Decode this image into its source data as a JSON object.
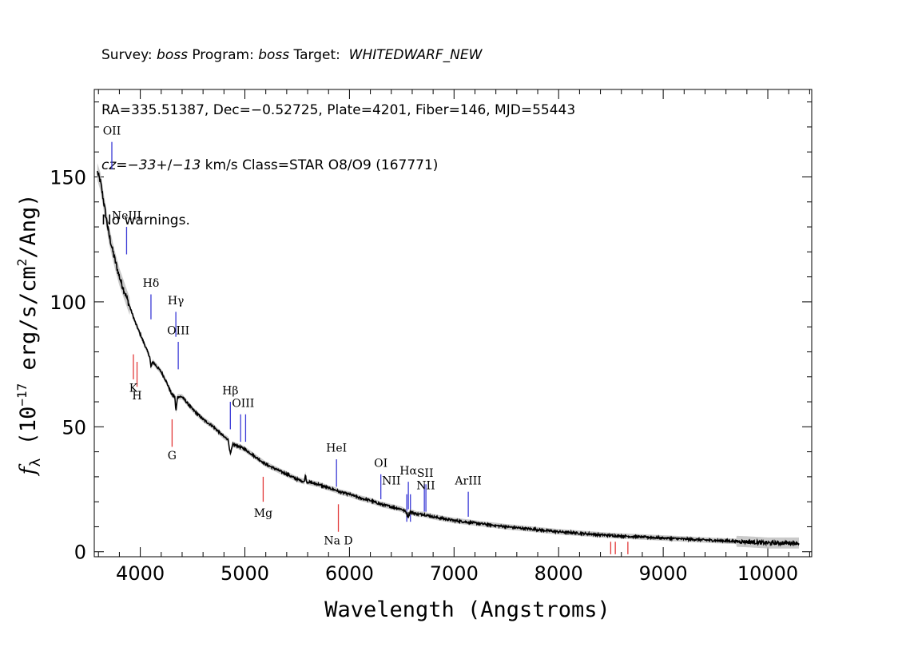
{
  "header": {
    "line1": {
      "survey_label": "Survey: ",
      "survey": "boss",
      "program_label": " Program: ",
      "program": "boss",
      "target_label": " Target:  ",
      "target": "WHITEDWARF_NEW"
    },
    "line2": "RA=335.51387, Dec=−0.52725, Plate=4201, Fiber=146, MJD=55443",
    "line3": {
      "cz_label": "cz=",
      "cz_value": "−33",
      "cz_sep": "+/−",
      "cz_err": "13",
      "cz_rest": " km/s Class=STAR O8/O9 (167771)"
    },
    "line4": "No warnings."
  },
  "chart_data": {
    "type": "line",
    "title": "",
    "xlabel": "Wavelength (Angstroms)",
    "ylabel": "f_λ (10^-17 erg/s/cm^2/Ang)",
    "ylabel_parts": {
      "f": "f",
      "lambda": "λ",
      "pre": " (10",
      "exp1": "−17",
      "mid": " erg/s/cm",
      "exp2": "2",
      "post": "/Ang)"
    },
    "xlim": [
      3560,
      10420
    ],
    "ylim": [
      -2,
      185
    ],
    "xticks": [
      4000,
      5000,
      6000,
      7000,
      8000,
      9000,
      10000
    ],
    "xtick_labels": [
      "4000",
      "5000",
      "6000",
      "7000",
      "8000",
      "9000",
      "10000"
    ],
    "yticks": [
      0,
      50,
      100,
      150
    ],
    "ytick_labels": [
      "0",
      "50",
      "100",
      "150"
    ],
    "grid": false,
    "colors": {
      "spectrum": "#000000",
      "error": "#bdbdbd",
      "emission": "#3a3ad6",
      "absorption": "#e23a3a"
    },
    "spectrum": {
      "x": [
        3590,
        3620,
        3650,
        3700,
        3750,
        3800,
        3850,
        3900,
        3950,
        4000,
        4050,
        4090,
        4102,
        4120,
        4200,
        4250,
        4300,
        4330,
        4341,
        4355,
        4400,
        4500,
        4600,
        4700,
        4800,
        4840,
        4861,
        4885,
        4950,
        5000,
        5100,
        5200,
        5300,
        5400,
        5500,
        5570,
        5578,
        5590,
        5700,
        5800,
        5880,
        5900,
        6000,
        6100,
        6200,
        6300,
        6400,
        6500,
        6540,
        6562,
        6580,
        6650,
        6700,
        6800,
        7000,
        7200,
        7500,
        8000,
        8500,
        9000,
        9500,
        9800,
        10000,
        10200,
        10300
      ],
      "y": [
        152,
        148,
        140,
        127,
        118,
        110,
        104,
        98,
        92,
        87,
        82,
        78,
        74,
        76,
        72,
        68,
        63,
        62,
        56,
        62,
        62,
        57,
        53,
        50,
        46,
        45,
        39,
        43,
        42,
        41,
        38,
        35,
        33,
        31,
        29,
        28,
        31,
        28,
        27,
        25.5,
        24.5,
        24,
        23,
        21.5,
        20.5,
        19,
        18,
        17,
        16,
        14,
        16,
        15,
        15,
        14,
        12.5,
        11.5,
        10,
        8,
        6.5,
        5.5,
        4.5,
        4,
        3.5,
        3.5,
        3.5
      ]
    },
    "emission_lines": [
      {
        "name": "OII",
        "wave": 3728,
        "y0": 153,
        "y1": 164
      },
      {
        "name": "NeIII",
        "wave": 3869,
        "y0": 119,
        "y1": 130
      },
      {
        "name": "Hδ",
        "wave": 4102,
        "y0": 93,
        "y1": 103
      },
      {
        "name": "Hγ",
        "wave": 4340,
        "y0": 86,
        "y1": 96
      },
      {
        "name": "OIII",
        "wave": 4363,
        "y0": 73,
        "y1": 84
      },
      {
        "name": "Hβ",
        "wave": 4861,
        "y0": 49,
        "y1": 60
      },
      {
        "name": "OIII",
        "wave": 4959,
        "y0": 44,
        "y1": 55
      },
      {
        "name": "OIII",
        "wave": 5007,
        "y0": 44,
        "y1": 55
      },
      {
        "name": "HeI",
        "wave": 5876,
        "y0": 26,
        "y1": 37
      },
      {
        "name": "OI",
        "wave": 6300,
        "y0": 21,
        "y1": 31
      },
      {
        "name": "NII",
        "wave": 6548,
        "y0": 12,
        "y1": 23
      },
      {
        "name": "Hα",
        "wave": 6563,
        "y0": 17,
        "y1": 28
      },
      {
        "name": "NII",
        "wave": 6583,
        "y0": 12,
        "y1": 23
      },
      {
        "name": "SII",
        "wave": 6716,
        "y0": 16,
        "y1": 27
      },
      {
        "name": "SII",
        "wave": 6731,
        "y0": 16,
        "y1": 27
      },
      {
        "name": "ArIII",
        "wave": 7136,
        "y0": 14,
        "y1": 24
      }
    ],
    "absorption_lines": [
      {
        "name": "K",
        "wave": 3934,
        "y0": 69,
        "y1": 79
      },
      {
        "name": "H",
        "wave": 3969,
        "y0": 66,
        "y1": 76
      },
      {
        "name": "G",
        "wave": 4304,
        "y0": 42,
        "y1": 53
      },
      {
        "name": "Mg",
        "wave": 5175,
        "y0": 20,
        "y1": 30
      },
      {
        "name": "Na D",
        "wave": 5894,
        "y0": 8,
        "y1": 19
      },
      {
        "name": "",
        "wave": 8498,
        "y0": -1,
        "y1": 4
      },
      {
        "name": "",
        "wave": 8542,
        "y0": -1,
        "y1": 4
      },
      {
        "name": "",
        "wave": 8662,
        "y0": -1,
        "y1": 4
      }
    ],
    "line_labels": [
      {
        "text": "OII",
        "wave": 3728,
        "y": 167
      },
      {
        "text": "NeIII",
        "wave": 3869,
        "y": 133
      },
      {
        "text": "Hδ",
        "wave": 4102,
        "y": 106
      },
      {
        "text": "Hγ",
        "wave": 4340,
        "y": 99
      },
      {
        "text": "OIII",
        "wave": 4363,
        "y": 87
      },
      {
        "text": "K",
        "wave": 3934,
        "y": 64
      },
      {
        "text": "H",
        "wave": 3969,
        "y": 61
      },
      {
        "text": "Hβ",
        "wave": 4861,
        "y": 63
      },
      {
        "text": "OIII",
        "wave": 4983,
        "y": 58
      },
      {
        "text": "G",
        "wave": 4304,
        "y": 37
      },
      {
        "text": "HeI",
        "wave": 5876,
        "y": 40
      },
      {
        "text": "OI",
        "wave": 6300,
        "y": 34
      },
      {
        "text": "NII",
        "wave": 6400,
        "y": 27
      },
      {
        "text": "Hα",
        "wave": 6563,
        "y": 31
      },
      {
        "text": "SII",
        "wave": 6724,
        "y": 30
      },
      {
        "text": "NII",
        "wave": 6730,
        "y": 25
      },
      {
        "text": "ArIII",
        "wave": 7136,
        "y": 27
      },
      {
        "text": "Mg",
        "wave": 5175,
        "y": 14
      },
      {
        "text": "Na  D",
        "wave": 5894,
        "y": 3
      }
    ]
  }
}
